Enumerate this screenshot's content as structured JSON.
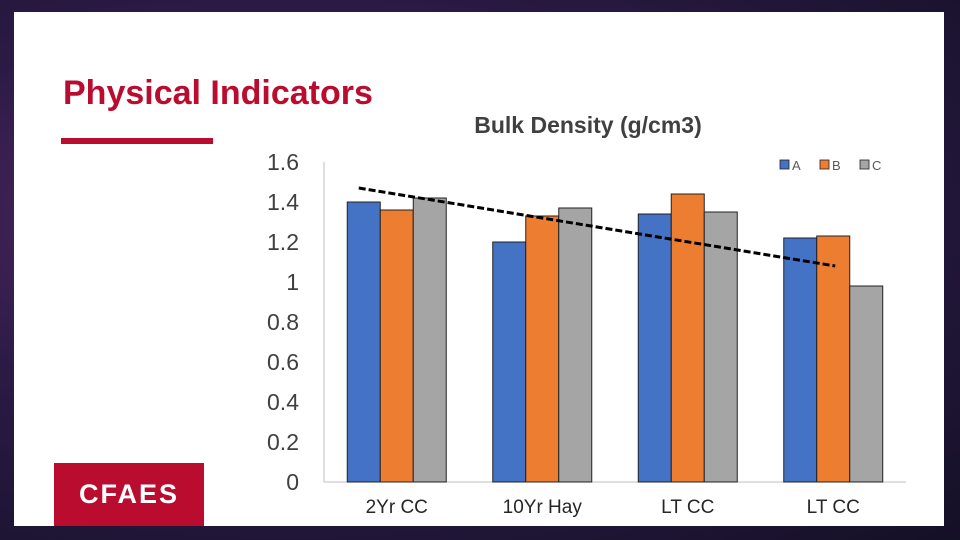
{
  "slide": {
    "title": "Physical Indicators",
    "logo_text": "CFAES"
  },
  "colors": {
    "brand_red": "#ba0c2f",
    "series_A": "#4472c4",
    "series_B": "#ed7d31",
    "series_C": "#a5a5a5"
  },
  "chart_data": {
    "type": "bar",
    "title": "Bulk Density (g/cm3)",
    "xlabel": "",
    "ylabel": "",
    "categories": [
      "2Yr CC",
      "10Yr Hay",
      "LT CC",
      "LT CC"
    ],
    "series": [
      {
        "name": "A",
        "values": [
          1.4,
          1.2,
          1.34,
          1.22
        ]
      },
      {
        "name": "B",
        "values": [
          1.36,
          1.33,
          1.44,
          1.23
        ]
      },
      {
        "name": "C",
        "values": [
          1.42,
          1.37,
          1.35,
          0.98
        ]
      }
    ],
    "ylim": [
      0,
      1.6
    ],
    "yticks": [
      "0",
      "0.2",
      "0.4",
      "0.6",
      "0.8",
      "1",
      "1.2",
      "1.4",
      "1.6"
    ],
    "trendline": {
      "style": "dashed",
      "start_value": 1.47,
      "end_value": 1.08
    },
    "legend": "top-right",
    "grid": false
  }
}
